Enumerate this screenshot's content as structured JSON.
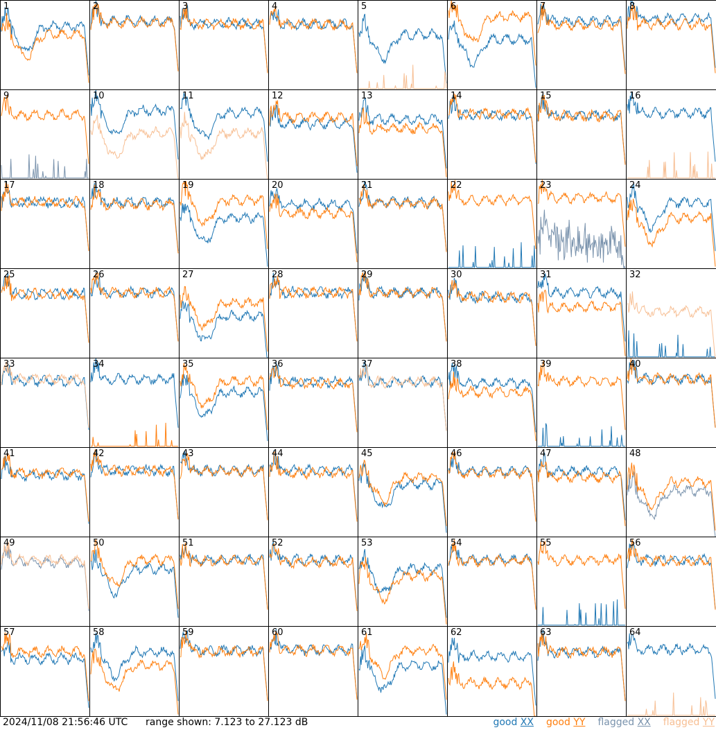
{
  "footer": {
    "timestamp": "2024/11/08 21:56:46 UTC",
    "range_text": "range shown: 7.123 to 27.123 dB"
  },
  "legend": [
    {
      "prefix": "good ",
      "tag": "XX",
      "color": "#1f77b4"
    },
    {
      "prefix": "good ",
      "tag": "YY",
      "color": "#ff7f0e"
    },
    {
      "prefix": "flagged ",
      "tag": "XX",
      "color": "#7a93ad"
    },
    {
      "prefix": "flagged ",
      "tag": "YY",
      "color": "#f7bf94"
    }
  ],
  "colors": {
    "good_xx": "#1f77b4",
    "good_yy": "#ff7f0e",
    "flagged_xx": "#7a93ad",
    "flagged_yy": "#f7bf94"
  },
  "chart_data": {
    "type": "line",
    "units": "dB",
    "ylim": [
      7.123,
      27.123
    ],
    "grid_layout": "8x8",
    "panel_labels": [
      "1",
      "2",
      "3",
      "4",
      "5",
      "6",
      "7",
      "8",
      "9",
      "10",
      "11",
      "12",
      "13",
      "14",
      "15",
      "16",
      "17",
      "18",
      "19",
      "20",
      "21",
      "22",
      "23",
      "24",
      "25",
      "26",
      "27",
      "28",
      "29",
      "30",
      "31",
      "32",
      "33",
      "34",
      "35",
      "36",
      "37",
      "38",
      "39",
      "40",
      "41",
      "42",
      "43",
      "44",
      "45",
      "46",
      "47",
      "48",
      "49",
      "50",
      "51",
      "52",
      "53",
      "54",
      "55",
      "56",
      "57",
      "58",
      "59",
      "60",
      "61",
      "62",
      "63",
      "64"
    ],
    "series": [
      {
        "name": "good XX"
      },
      {
        "name": "good YY"
      },
      {
        "name": "flagged XX"
      },
      {
        "name": "flagged YY"
      }
    ],
    "panels": [
      {
        "xx": "good",
        "yy": "good",
        "xx_lvl": 21.3,
        "yy_lvl": 19.6,
        "shape": "dip"
      },
      {
        "xx": "good",
        "yy": "good",
        "xx_lvl": 22.5,
        "yy_lvl": 22.2,
        "shape": "flat"
      },
      {
        "xx": "good",
        "yy": "good",
        "xx_lvl": 22.0,
        "yy_lvl": 21.8,
        "shape": "flat"
      },
      {
        "xx": "good",
        "yy": "good",
        "xx_lvl": 21.8,
        "yy_lvl": 21.8,
        "shape": "flat"
      },
      {
        "xx": "good",
        "yy": "flagged",
        "xx_lvl": 19.5,
        "yy_lvl": 7.5,
        "shape": "dip"
      },
      {
        "xx": "good",
        "yy": "good",
        "xx_lvl": 18.5,
        "yy_lvl": 23.5,
        "shape": "dip"
      },
      {
        "xx": "good",
        "yy": "good",
        "xx_lvl": 22.5,
        "yy_lvl": 21.6,
        "shape": "flat"
      },
      {
        "xx": "good",
        "yy": "good",
        "xx_lvl": 23.0,
        "yy_lvl": 21.8,
        "shape": "flat"
      },
      {
        "xx": "flagged",
        "yy": "good",
        "xx_lvl": 8.5,
        "yy_lvl": 21.5,
        "shape": "flat"
      },
      {
        "xx": "good",
        "yy": "flagged",
        "xx_lvl": 22.5,
        "yy_lvl": 17.5,
        "shape": "dip"
      },
      {
        "xx": "good",
        "yy": "flagged",
        "xx_lvl": 22.0,
        "yy_lvl": 17.5,
        "shape": "dip"
      },
      {
        "xx": "good",
        "yy": "good",
        "xx_lvl": 19.5,
        "yy_lvl": 21.0,
        "shape": "flat"
      },
      {
        "xx": "good",
        "yy": "good",
        "xx_lvl": 20.5,
        "yy_lvl": 18.5,
        "shape": "flat"
      },
      {
        "xx": "good",
        "yy": "good",
        "xx_lvl": 21.5,
        "yy_lvl": 21.8,
        "shape": "flat"
      },
      {
        "xx": "good",
        "yy": "good",
        "xx_lvl": 21.5,
        "yy_lvl": 21.3,
        "shape": "flat"
      },
      {
        "xx": "good",
        "yy": "flagged",
        "xx_lvl": 22.0,
        "yy_lvl": 7.5,
        "shape": "flat"
      },
      {
        "xx": "good",
        "yy": "good",
        "xx_lvl": 22.0,
        "yy_lvl": 22.0,
        "shape": "flat"
      },
      {
        "xx": "good",
        "yy": "good",
        "xx_lvl": 22.0,
        "yy_lvl": 21.5,
        "shape": "flat"
      },
      {
        "xx": "good",
        "yy": "good",
        "xx_lvl": 18.5,
        "yy_lvl": 22.5,
        "shape": "dip"
      },
      {
        "xx": "good",
        "yy": "good",
        "xx_lvl": 21.5,
        "yy_lvl": 19.5,
        "shape": "flat"
      },
      {
        "xx": "good",
        "yy": "good",
        "xx_lvl": 22.0,
        "yy_lvl": 21.8,
        "shape": "flat"
      },
      {
        "xx": "good",
        "yy": "good",
        "xx_lvl": 7.5,
        "yy_lvl": 22.5,
        "shape": "flat"
      },
      {
        "xx": "flagged",
        "yy": "good",
        "xx_lvl": 13.0,
        "yy_lvl": 23.0,
        "shape": "flat"
      },
      {
        "xx": "good",
        "yy": "good",
        "xx_lvl": 22.0,
        "yy_lvl": 18.5,
        "shape": "dip"
      },
      {
        "xx": "good",
        "yy": "good",
        "xx_lvl": 21.5,
        "yy_lvl": 21.5,
        "shape": "flat"
      },
      {
        "xx": "good",
        "yy": "good",
        "xx_lvl": 21.8,
        "yy_lvl": 21.8,
        "shape": "flat"
      },
      {
        "xx": "good",
        "yy": "good",
        "xx_lvl": 16.5,
        "yy_lvl": 19.5,
        "shape": "dip"
      },
      {
        "xx": "good",
        "yy": "good",
        "xx_lvl": 21.8,
        "yy_lvl": 21.8,
        "shape": "flat"
      },
      {
        "xx": "good",
        "yy": "good",
        "xx_lvl": 21.8,
        "yy_lvl": 21.8,
        "shape": "flat"
      },
      {
        "xx": "good",
        "yy": "good",
        "xx_lvl": 20.8,
        "yy_lvl": 20.8,
        "shape": "flat"
      },
      {
        "xx": "good",
        "yy": "good",
        "xx_lvl": 21.8,
        "yy_lvl": 18.5,
        "shape": "flat"
      },
      {
        "xx": "good",
        "yy": "flagged",
        "xx_lvl": 7.5,
        "yy_lvl": 17.5,
        "shape": "flat"
      },
      {
        "xx": "good",
        "yy": "flagged",
        "xx_lvl": 22.0,
        "yy_lvl": 22.5,
        "shape": "flat"
      },
      {
        "xx": "good",
        "yy": "good",
        "xx_lvl": 22.5,
        "yy_lvl": 8.0,
        "shape": "flat"
      },
      {
        "xx": "good",
        "yy": "good",
        "xx_lvl": 19.5,
        "yy_lvl": 22.0,
        "shape": "dip"
      },
      {
        "xx": "good",
        "yy": "good",
        "xx_lvl": 21.8,
        "yy_lvl": 21.5,
        "shape": "flat"
      },
      {
        "xx": "good",
        "yy": "flagged",
        "xx_lvl": 21.8,
        "yy_lvl": 21.8,
        "shape": "flat"
      },
      {
        "xx": "good",
        "yy": "good",
        "xx_lvl": 21.5,
        "yy_lvl": 19.5,
        "shape": "flat"
      },
      {
        "xx": "good",
        "yy": "good",
        "xx_lvl": 8.0,
        "yy_lvl": 22.0,
        "shape": "flat"
      },
      {
        "xx": "good",
        "yy": "good",
        "xx_lvl": 22.5,
        "yy_lvl": 22.5,
        "shape": "flat"
      },
      {
        "xx": "good",
        "yy": "good",
        "xx_lvl": 21.0,
        "yy_lvl": 21.5,
        "shape": "flat"
      },
      {
        "xx": "good",
        "yy": "good",
        "xx_lvl": 22.0,
        "yy_lvl": 22.0,
        "shape": "flat"
      },
      {
        "xx": "good",
        "yy": "good",
        "xx_lvl": 22.0,
        "yy_lvl": 21.8,
        "shape": "flat"
      },
      {
        "xx": "good",
        "yy": "good",
        "xx_lvl": 22.0,
        "yy_lvl": 21.5,
        "shape": "flat"
      },
      {
        "xx": "good",
        "yy": "good",
        "xx_lvl": 19.0,
        "yy_lvl": 20.5,
        "shape": "dip"
      },
      {
        "xx": "good",
        "yy": "good",
        "xx_lvl": 21.8,
        "yy_lvl": 21.5,
        "shape": "flat"
      },
      {
        "xx": "good",
        "yy": "good",
        "xx_lvl": 21.8,
        "yy_lvl": 20.5,
        "shape": "flat"
      },
      {
        "xx": "flagged",
        "yy": "good",
        "xx_lvl": 17.5,
        "yy_lvl": 19.5,
        "shape": "dip"
      },
      {
        "xx": "flagged",
        "yy": "flagged",
        "xx_lvl": 21.5,
        "yy_lvl": 22.0,
        "shape": "flat"
      },
      {
        "xx": "good",
        "yy": "good",
        "xx_lvl": 20.0,
        "yy_lvl": 22.0,
        "shape": "dip"
      },
      {
        "xx": "good",
        "yy": "good",
        "xx_lvl": 22.0,
        "yy_lvl": 21.8,
        "shape": "flat"
      },
      {
        "xx": "good",
        "yy": "good",
        "xx_lvl": 22.0,
        "yy_lvl": 21.5,
        "shape": "flat"
      },
      {
        "xx": "good",
        "yy": "good",
        "xx_lvl": 20.0,
        "yy_lvl": 18.5,
        "shape": "dip"
      },
      {
        "xx": "good",
        "yy": "good",
        "xx_lvl": 22.0,
        "yy_lvl": 21.8,
        "shape": "flat"
      },
      {
        "xx": "good",
        "yy": "good",
        "xx_lvl": 8.5,
        "yy_lvl": 22.0,
        "shape": "flat"
      },
      {
        "xx": "good",
        "yy": "good",
        "xx_lvl": 22.0,
        "yy_lvl": 21.8,
        "shape": "flat"
      },
      {
        "xx": "good",
        "yy": "good",
        "xx_lvl": 20.0,
        "yy_lvl": 21.5,
        "shape": "flat"
      },
      {
        "xx": "good",
        "yy": "good",
        "xx_lvl": 21.5,
        "yy_lvl": 18.5,
        "shape": "dip"
      },
      {
        "xx": "good",
        "yy": "good",
        "xx_lvl": 21.8,
        "yy_lvl": 21.5,
        "shape": "flat"
      },
      {
        "xx": "good",
        "yy": "good",
        "xx_lvl": 22.0,
        "yy_lvl": 21.8,
        "shape": "flat"
      },
      {
        "xx": "good",
        "yy": "good",
        "xx_lvl": 18.5,
        "yy_lvl": 21.8,
        "shape": "dip"
      },
      {
        "xx": "good",
        "yy": "good",
        "xx_lvl": 20.5,
        "yy_lvl": 14.5,
        "shape": "flat"
      },
      {
        "xx": "good",
        "yy": "good",
        "xx_lvl": 21.5,
        "yy_lvl": 21.5,
        "shape": "flat"
      },
      {
        "xx": "good",
        "yy": "flagged",
        "xx_lvl": 22.0,
        "yy_lvl": 7.5,
        "shape": "flat"
      }
    ]
  }
}
